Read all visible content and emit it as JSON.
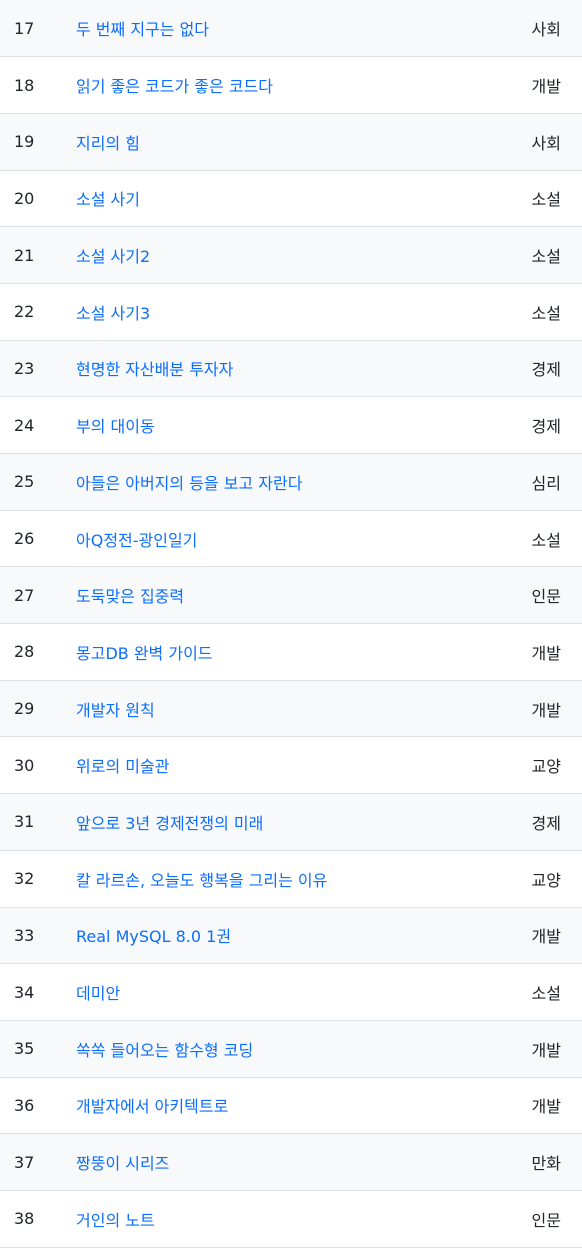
{
  "rows": [
    {
      "num": "17",
      "title": "두 번째 지구는 없다",
      "category": "사회"
    },
    {
      "num": "18",
      "title": "읽기 좋은 코드가 좋은 코드다",
      "category": "개발"
    },
    {
      "num": "19",
      "title": "지리의 힘",
      "category": "사회"
    },
    {
      "num": "20",
      "title": "소설 사기",
      "category": "소설"
    },
    {
      "num": "21",
      "title": "소설 사기2",
      "category": "소설"
    },
    {
      "num": "22",
      "title": "소설 사기3",
      "category": "소설"
    },
    {
      "num": "23",
      "title": "현명한 자산배분 투자자",
      "category": "경제"
    },
    {
      "num": "24",
      "title": "부의 대이동",
      "category": "경제"
    },
    {
      "num": "25",
      "title": "아들은 아버지의 등을 보고 자란다",
      "category": "심리"
    },
    {
      "num": "26",
      "title": "아Q정전-광인일기",
      "category": "소설"
    },
    {
      "num": "27",
      "title": "도둑맞은 집중력",
      "category": "인문"
    },
    {
      "num": "28",
      "title": "몽고DB 완벽 가이드",
      "category": "개발"
    },
    {
      "num": "29",
      "title": "개발자 원칙",
      "category": "개발"
    },
    {
      "num": "30",
      "title": "위로의 미술관",
      "category": "교양"
    },
    {
      "num": "31",
      "title": "앞으로 3년 경제전쟁의 미래",
      "category": "경제"
    },
    {
      "num": "32",
      "title": "칼 라르손, 오늘도 행복을 그리는 이유",
      "category": "교양"
    },
    {
      "num": "33",
      "title": "Real MySQL 8.0 1권",
      "category": "개발"
    },
    {
      "num": "34",
      "title": "데미안",
      "category": "소설"
    },
    {
      "num": "35",
      "title": "쏙쏙 들어오는 함수형 코딩",
      "category": "개발"
    },
    {
      "num": "36",
      "title": "개발자에서 아키텍트로",
      "category": "개발"
    },
    {
      "num": "37",
      "title": "짱뚱이 시리즈",
      "category": "만화"
    },
    {
      "num": "38",
      "title": "거인의 노트",
      "category": "인문"
    }
  ]
}
